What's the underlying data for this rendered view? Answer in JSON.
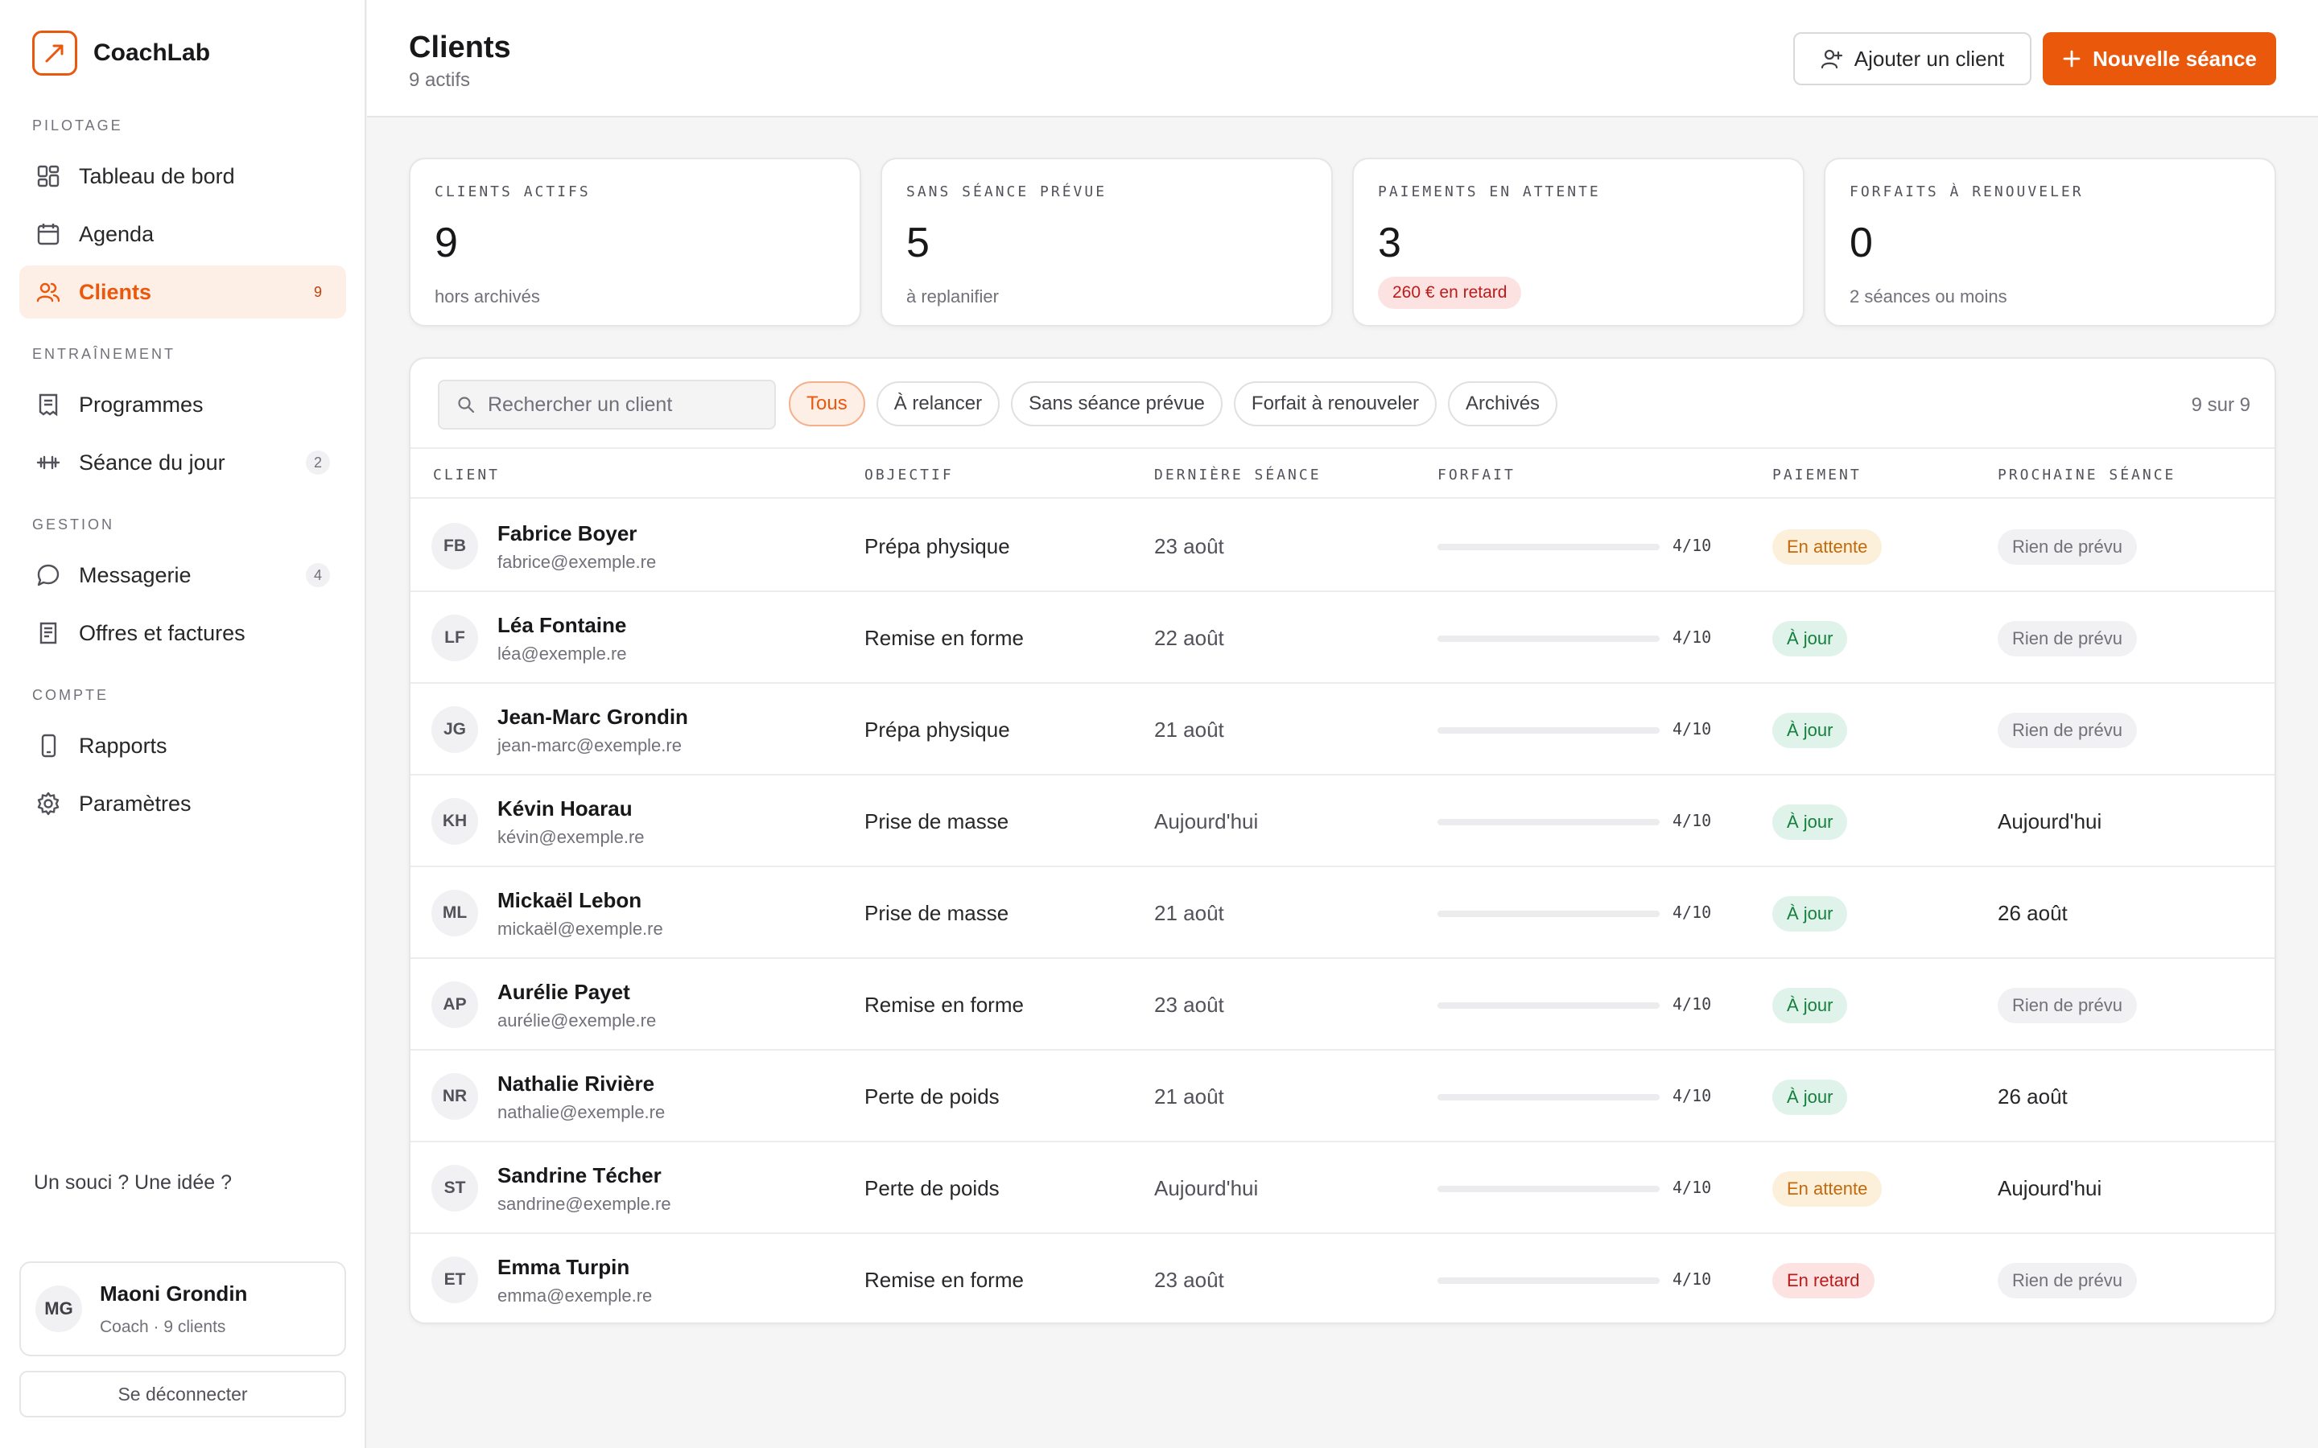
{
  "brand": {
    "name": "CoachLab",
    "logo_icon": "trend-arrow-icon",
    "accent": "#ea580c"
  },
  "sidebar": {
    "sections": [
      "PILOTAGE",
      "ENTRAÎNEMENT",
      "GESTION",
      "COMPTE"
    ],
    "items": [
      {
        "label": "Tableau de bord",
        "icon": "dashboard-icon",
        "count": "",
        "active": false
      },
      {
        "label": "Agenda",
        "icon": "calendar-icon",
        "count": "",
        "active": false
      },
      {
        "label": "Clients",
        "icon": "users-icon",
        "count": "9",
        "active": true
      },
      {
        "label": "Programmes",
        "icon": "document-icon",
        "count": "",
        "active": false
      },
      {
        "label": "Séance du jour",
        "icon": "dumbbell-icon",
        "count": "2",
        "active": false
      },
      {
        "label": "Messagerie",
        "icon": "chat-icon",
        "count": "4",
        "active": false
      },
      {
        "label": "Offres et factures",
        "icon": "invoice-icon",
        "count": "",
        "active": false
      },
      {
        "label": "Rapports",
        "icon": "phone-icon",
        "count": "",
        "active": false
      },
      {
        "label": "Paramètres",
        "icon": "gear-icon",
        "count": "",
        "active": false
      }
    ],
    "feedback": "Un souci ? Une idée ?",
    "user": {
      "initials": "MG",
      "name": "Maoni Grondin",
      "role": "Coach · 9 clients"
    },
    "logout": "Se déconnecter"
  },
  "header": {
    "title": "Clients",
    "subtitle": "9 actifs",
    "add_client": "Ajouter un client",
    "new_session": "Nouvelle séance"
  },
  "stats": [
    {
      "label": "CLIENTS ACTIFS",
      "value": "9",
      "note": "hors archivés"
    },
    {
      "label": "SANS SÉANCE PRÉVUE",
      "value": "5",
      "note": "à replanifier"
    },
    {
      "label": "PAIEMENTS EN ATTENTE",
      "value": "3",
      "badge": "260 € en retard"
    },
    {
      "label": "FORFAITS À RENOUVELER",
      "value": "0",
      "note": "2 séances ou moins"
    }
  ],
  "search": {
    "placeholder": "Rechercher un client",
    "value": ""
  },
  "filters": [
    {
      "label": "Tous",
      "active": true
    },
    {
      "label": "À relancer",
      "active": false
    },
    {
      "label": "Sans séance prévue",
      "active": false
    },
    {
      "label": "Forfait à renouveler",
      "active": false
    },
    {
      "label": "Archivés",
      "active": false
    }
  ],
  "result_count": "9 sur 9",
  "columns": [
    "CLIENT",
    "OBJECTIF",
    "DERNIÈRE SÉANCE",
    "FORFAIT",
    "PAIEMENT",
    "PROCHAINE SÉANCE"
  ],
  "clients": [
    {
      "initials": "FB",
      "name": "Fabrice Boyer",
      "email": "fabrice@exemple.re",
      "goal": "Prépa physique",
      "last": "23 août",
      "pack": "4/10",
      "pack_used": 0.4,
      "payment": "En attente",
      "payment_status": "wait",
      "next": "Rien de prévu",
      "next_none": true
    },
    {
      "initials": "LF",
      "name": "Léa Fontaine",
      "email": "léa@exemple.re",
      "goal": "Remise en forme",
      "last": "22 août",
      "pack": "4/10",
      "pack_used": 0.4,
      "payment": "À jour",
      "payment_status": "ok",
      "next": "Rien de prévu",
      "next_none": true
    },
    {
      "initials": "JG",
      "name": "Jean-Marc Grondin",
      "email": "jean-marc@exemple.re",
      "goal": "Prépa physique",
      "last": "21 août",
      "pack": "4/10",
      "pack_used": 0.4,
      "payment": "À jour",
      "payment_status": "ok",
      "next": "Rien de prévu",
      "next_none": true
    },
    {
      "initials": "KH",
      "name": "Kévin Hoarau",
      "email": "kévin@exemple.re",
      "goal": "Prise de masse",
      "last": "Aujourd'hui",
      "pack": "4/10",
      "pack_used": 0.4,
      "payment": "À jour",
      "payment_status": "ok",
      "next": "Aujourd'hui",
      "next_none": false
    },
    {
      "initials": "ML",
      "name": "Mickaël Lebon",
      "email": "mickaël@exemple.re",
      "goal": "Prise de masse",
      "last": "21 août",
      "pack": "4/10",
      "pack_used": 0.4,
      "payment": "À jour",
      "payment_status": "ok",
      "next": "26 août",
      "next_none": false
    },
    {
      "initials": "AP",
      "name": "Aurélie Payet",
      "email": "aurélie@exemple.re",
      "goal": "Remise en forme",
      "last": "23 août",
      "pack": "4/10",
      "pack_used": 0.4,
      "payment": "À jour",
      "payment_status": "ok",
      "next": "Rien de prévu",
      "next_none": true
    },
    {
      "initials": "NR",
      "name": "Nathalie Rivière",
      "email": "nathalie@exemple.re",
      "goal": "Perte de poids",
      "last": "21 août",
      "pack": "4/10",
      "pack_used": 0.4,
      "payment": "À jour",
      "payment_status": "ok",
      "next": "26 août",
      "next_none": false
    },
    {
      "initials": "ST",
      "name": "Sandrine Técher",
      "email": "sandrine@exemple.re",
      "goal": "Perte de poids",
      "last": "Aujourd'hui",
      "pack": "4/10",
      "pack_used": 0.4,
      "payment": "En attente",
      "payment_status": "wait",
      "next": "Aujourd'hui",
      "next_none": false
    },
    {
      "initials": "ET",
      "name": "Emma Turpin",
      "email": "emma@exemple.re",
      "goal": "Remise en forme",
      "last": "23 août",
      "pack": "4/10",
      "pack_used": 0.4,
      "payment": "En retard",
      "payment_status": "late",
      "next": "Rien de prévu",
      "next_none": true
    }
  ]
}
